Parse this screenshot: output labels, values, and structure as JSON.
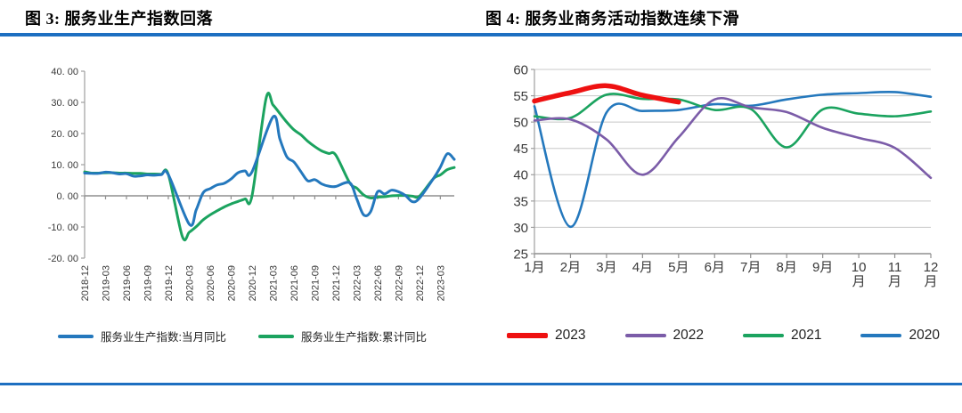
{
  "accent_rule_color": "#1d6fc1",
  "chart_data": [
    {
      "type": "line",
      "title": "图 3: 服务业生产指数回落",
      "x_monthly_from": "2018-12",
      "x_monthly_to": "2023-05",
      "x_tick_every": 3,
      "x_tick_labels": [
        "2018-12",
        "2019-03",
        "2019-06",
        "2019-09",
        "2019-12",
        "2020-03",
        "2020-06",
        "2020-09",
        "2020-12",
        "2021-03",
        "2021-06",
        "2021-09",
        "2021-12",
        "2022-03",
        "2022-06",
        "2022-09",
        "2022-12",
        "2023-03"
      ],
      "ylim": [
        -20,
        40
      ],
      "y_tick_values": [
        40,
        30,
        20,
        10,
        0,
        -10,
        -20
      ],
      "y_tick_labels": [
        "40. 00",
        "30. 00",
        "20. 00",
        "10. 00",
        "0. 00",
        "-10. 00",
        "-20. 00"
      ],
      "grid": false,
      "x_axis_at": 0,
      "legend_position": "bottom",
      "series": [
        {
          "name": "服务业生产指数:当月同比",
          "color": "#2478bd",
          "line_width": 3,
          "values": [
            7.3,
            7.2,
            7.2,
            7.6,
            7.4,
            7.0,
            7.1,
            6.3,
            6.4,
            6.7,
            6.6,
            6.8,
            6.8,
            null,
            null,
            -9.1,
            -4.5,
            1.0,
            2.3,
            3.5,
            4.0,
            5.4,
            7.4,
            8.0,
            7.7,
            null,
            null,
            25.3,
            18.2,
            12.5,
            10.9,
            7.8,
            4.8,
            5.2,
            3.8,
            3.1,
            3.0,
            null,
            4.2,
            -0.9,
            -6.1,
            -5.1,
            1.3,
            0.6,
            1.8,
            1.3,
            0.1,
            -1.9,
            -0.8,
            null,
            5.5,
            9.2,
            13.5,
            11.7
          ]
        },
        {
          "name": "服务业生产指数:累计同比",
          "color": "#1ba35f",
          "line_width": 3,
          "values": [
            7.7,
            7.3,
            7.3,
            7.4,
            7.4,
            7.3,
            7.3,
            7.2,
            7.2,
            7.0,
            7.0,
            6.9,
            6.9,
            null,
            -13.0,
            -11.7,
            -9.9,
            -7.7,
            -6.1,
            -4.8,
            -3.6,
            -2.6,
            -1.8,
            -1.0,
            0.0,
            null,
            31.1,
            29.2,
            26.4,
            23.6,
            21.2,
            19.6,
            17.5,
            15.8,
            14.4,
            13.6,
            13.1,
            null,
            4.2,
            2.5,
            0.3,
            -0.7,
            -0.4,
            -0.3,
            0.0,
            0.1,
            0.1,
            -0.1,
            -0.1,
            null,
            5.5,
            6.7,
            8.4,
            9.1
          ]
        }
      ]
    },
    {
      "type": "line",
      "title": "图 4: 服务业商务活动指数连续下滑",
      "categories": [
        "1月",
        "2月",
        "3月",
        "4月",
        "5月",
        "6月",
        "7月",
        "8月",
        "9月",
        "10\n月",
        "11\n月",
        "12\n月"
      ],
      "ylim": [
        25,
        60
      ],
      "y_tick_values": [
        25,
        30,
        35,
        40,
        45,
        50,
        55,
        60
      ],
      "y_tick_labels": [
        "25",
        "30",
        "35",
        "40",
        "45",
        "50",
        "55",
        "60"
      ],
      "grid": true,
      "x_axis_at": 25,
      "legend_position": "bottom",
      "series": [
        {
          "name": "2023",
          "color": "#ee1111",
          "line_width": 5.5,
          "values": [
            54.0,
            55.6,
            56.9,
            55.1,
            53.8
          ]
        },
        {
          "name": "2022",
          "color": "#7b5ca8",
          "line_width": 2.6,
          "values": [
            50.3,
            50.5,
            46.7,
            40.0,
            47.1,
            54.3,
            52.8,
            51.9,
            48.9,
            47.0,
            45.1,
            39.4
          ]
        },
        {
          "name": "2021",
          "color": "#1ba35f",
          "line_width": 2.6,
          "values": [
            51.1,
            50.8,
            55.2,
            54.4,
            54.3,
            52.3,
            52.5,
            45.2,
            52.4,
            51.6,
            51.1,
            52.0
          ]
        },
        {
          "name": "2020",
          "color": "#2478bd",
          "line_width": 2.6,
          "values": [
            53.0,
            30.1,
            51.8,
            52.1,
            52.3,
            53.4,
            53.1,
            54.3,
            55.2,
            55.5,
            55.7,
            54.8
          ]
        }
      ]
    }
  ]
}
